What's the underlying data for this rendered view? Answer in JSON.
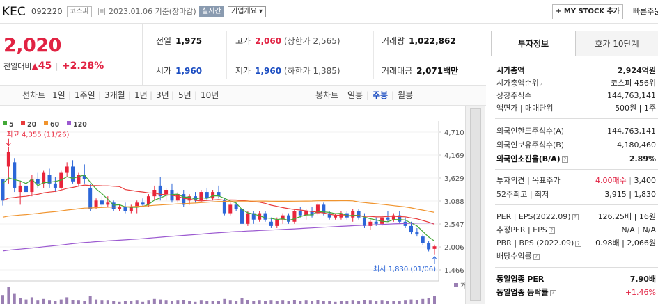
{
  "header": {
    "stock_name": "KEC",
    "stock_code": "092220",
    "market": "코스피",
    "date_text": "2023.01.06 기준(장마감)",
    "realtime_label": "실시간",
    "company_info_label": "기업개요",
    "mystock_label": "+ MY STOCK 추가",
    "quick_label": "빠른주문"
  },
  "price": {
    "current": "2,020",
    "change_label": "전일대비",
    "change_arrow": "▲",
    "change_value": "45",
    "change_pct": "+2.28%"
  },
  "summary": {
    "prev_close": {
      "label": "전일",
      "value": "1,975"
    },
    "high": {
      "label": "고가",
      "value": "2,060",
      "sub": "(상한가 2,565)"
    },
    "volume": {
      "label": "거래량",
      "value": "1,022,862"
    },
    "open": {
      "label": "시가",
      "value": "1,960"
    },
    "low": {
      "label": "저가",
      "value": "1,960",
      "sub": "(하한가 1,385)"
    },
    "amount": {
      "label": "거래대금",
      "value": "2,071",
      "unit": "백만"
    }
  },
  "period_bar": {
    "line_chart_label": "선차트",
    "line_periods": [
      "1일",
      "1주일",
      "3개월",
      "1년",
      "3년",
      "5년",
      "10년"
    ],
    "candle_chart_label": "봉차트",
    "candle_periods": [
      "일봉",
      "주봉",
      "월봉"
    ],
    "active_candle": "주봉"
  },
  "chart_data": {
    "type": "candlestick",
    "interval": "weekly",
    "legend": [
      {
        "name": "5",
        "color": "#43a937"
      },
      {
        "name": "20",
        "color": "#e83b3b"
      },
      {
        "name": "60",
        "color": "#f0942e"
      },
      {
        "name": "120",
        "color": "#9b59d0"
      }
    ],
    "y_ticks": [
      4710,
      4169,
      3629,
      3088,
      2547,
      2006,
      1466
    ],
    "ylim": [
      1466,
      4710
    ],
    "max_annotation": "최고 4,355 (11/26)",
    "min_annotation": "최저 1,830 (01/06)",
    "volume_label": "거래량",
    "candles": [
      [
        3600,
        3600,
        2980,
        3100,
        "d"
      ],
      [
        3900,
        4355,
        3500,
        4250,
        "u"
      ],
      [
        4000,
        4100,
        3300,
        3400,
        "d"
      ],
      [
        3300,
        3550,
        3000,
        3450,
        "u"
      ],
      [
        3450,
        3600,
        3200,
        3300,
        "d"
      ],
      [
        3300,
        3700,
        3200,
        3600,
        "u"
      ],
      [
        3600,
        3750,
        3400,
        3500,
        "d"
      ],
      [
        3500,
        3800,
        3400,
        3750,
        "u"
      ],
      [
        3700,
        3850,
        3400,
        3500,
        "d"
      ],
      [
        3500,
        3650,
        3300,
        3400,
        "d"
      ],
      [
        3400,
        3800,
        3350,
        3750,
        "u"
      ],
      [
        3750,
        4000,
        3650,
        3900,
        "u"
      ],
      [
        3900,
        4050,
        3500,
        3550,
        "d"
      ],
      [
        3500,
        3750,
        3450,
        3700,
        "u"
      ],
      [
        3700,
        3950,
        3500,
        3600,
        "d"
      ],
      [
        3400,
        3500,
        2850,
        2900,
        "d"
      ],
      [
        2950,
        3150,
        2900,
        3100,
        "u"
      ],
      [
        3100,
        3200,
        2950,
        3000,
        "d"
      ],
      [
        3000,
        3200,
        2950,
        3050,
        "u"
      ],
      [
        3050,
        3100,
        2850,
        2900,
        "d"
      ],
      [
        2900,
        3000,
        2850,
        2950,
        "u"
      ],
      [
        2950,
        3050,
        2800,
        2850,
        "d"
      ],
      [
        2850,
        3000,
        2800,
        2950,
        "u"
      ],
      [
        2950,
        3100,
        2800,
        3050,
        "u"
      ],
      [
        3050,
        3150,
        2950,
        3000,
        "d"
      ],
      [
        3000,
        3250,
        2950,
        3200,
        "u"
      ],
      [
        3200,
        3450,
        3100,
        3350,
        "u"
      ],
      [
        3450,
        3650,
        3100,
        3200,
        "d"
      ],
      [
        3250,
        3400,
        3100,
        3350,
        "u"
      ],
      [
        3350,
        3500,
        3050,
        3100,
        "d"
      ],
      [
        3100,
        3300,
        3050,
        3250,
        "u"
      ],
      [
        3250,
        3350,
        2950,
        3000,
        "d"
      ],
      [
        3100,
        3250,
        3000,
        3200,
        "u"
      ],
      [
        3200,
        3300,
        3050,
        3100,
        "d"
      ],
      [
        3100,
        3350,
        3050,
        3300,
        "u"
      ],
      [
        3300,
        3400,
        3100,
        3150,
        "d"
      ],
      [
        3150,
        3350,
        3100,
        3300,
        "u"
      ],
      [
        3300,
        3450,
        3150,
        3200,
        "d"
      ],
      [
        3100,
        3150,
        2750,
        2800,
        "d"
      ],
      [
        2800,
        3050,
        2750,
        3000,
        "u"
      ],
      [
        3000,
        3050,
        2850,
        2900,
        "d"
      ],
      [
        2900,
        2950,
        2500,
        2550,
        "d"
      ],
      [
        2550,
        2850,
        2500,
        2800,
        "u"
      ],
      [
        2800,
        2850,
        2550,
        2650,
        "d"
      ],
      [
        2650,
        2850,
        2600,
        2800,
        "u"
      ],
      [
        2800,
        2850,
        2600,
        2650,
        "d"
      ],
      [
        2600,
        2700,
        2450,
        2500,
        "d"
      ],
      [
        2500,
        2700,
        2450,
        2650,
        "u"
      ],
      [
        2650,
        2800,
        2550,
        2750,
        "u"
      ],
      [
        2750,
        2800,
        2550,
        2600,
        "d"
      ],
      [
        2600,
        2900,
        2550,
        2850,
        "u"
      ],
      [
        2850,
        2950,
        2700,
        2750,
        "d"
      ],
      [
        2750,
        2900,
        2650,
        2850,
        "u"
      ],
      [
        2850,
        2950,
        2700,
        2750,
        "d"
      ],
      [
        2800,
        3050,
        2750,
        3000,
        "u"
      ],
      [
        3000,
        3050,
        2750,
        2800,
        "d"
      ],
      [
        2800,
        2850,
        2650,
        2700,
        "d"
      ],
      [
        2750,
        2800,
        2650,
        2700,
        "u"
      ],
      [
        2700,
        2850,
        2650,
        2800,
        "u"
      ],
      [
        2800,
        2850,
        2650,
        2700,
        "d"
      ],
      [
        2700,
        2900,
        2600,
        2850,
        "u"
      ],
      [
        2850,
        2900,
        2650,
        2700,
        "d"
      ],
      [
        2700,
        2800,
        2450,
        2500,
        "d"
      ],
      [
        2500,
        2650,
        2400,
        2600,
        "u"
      ],
      [
        2600,
        2700,
        2500,
        2550,
        "d"
      ],
      [
        2550,
        2750,
        2500,
        2700,
        "u"
      ],
      [
        2700,
        2850,
        2600,
        2650,
        "d"
      ],
      [
        2650,
        2800,
        2600,
        2750,
        "u"
      ],
      [
        2750,
        2850,
        2550,
        2600,
        "d"
      ],
      [
        2600,
        2700,
        2450,
        2500,
        "d"
      ],
      [
        2500,
        2600,
        2300,
        2350,
        "d"
      ],
      [
        2350,
        2450,
        2250,
        2300,
        "d"
      ],
      [
        2250,
        2300,
        2050,
        2100,
        "d"
      ],
      [
        2100,
        2150,
        1900,
        1950,
        "d"
      ],
      [
        1960,
        2060,
        1830,
        2020,
        "u"
      ]
    ]
  },
  "side_panel": {
    "tabs": [
      "투자정보",
      "호가 10단계"
    ],
    "rows": [
      {
        "label": "시가총액",
        "value": "2,924억원"
      },
      {
        "label": "시가총액순위",
        "value": "코스피 456위"
      },
      {
        "label": "상장주식수",
        "value": "144,763,141"
      },
      {
        "label": "액면가 | 매매단위",
        "value": "500원 | 1주"
      },
      {
        "label": "외국인한도주식수(A)",
        "value": "144,763,141"
      },
      {
        "label": "외국인보유주식수(B)",
        "value": "4,180,460"
      },
      {
        "label": "외국인소진율(B/A)",
        "value": "2.89%"
      },
      {
        "label": "투자의견 | 목표주가",
        "value_red": "4.00매수",
        "value": "3,400"
      },
      {
        "label": "52주최고 | 최저",
        "value": "3,915 | 1,830"
      },
      {
        "label": "PER | EPS(2022.09)",
        "value": "126.25배 | 16원"
      },
      {
        "label": "추정PER | EPS",
        "value": "N/A | N/A"
      },
      {
        "label": "PBR | BPS (2022.09)",
        "value": "0.98배 | 2,066원"
      },
      {
        "label": "배당수익률",
        "value": ""
      },
      {
        "label": "동일업종 PER",
        "value": "7.90배"
      },
      {
        "label": "동일업종 등락률",
        "value": "+1.46%"
      }
    ]
  }
}
